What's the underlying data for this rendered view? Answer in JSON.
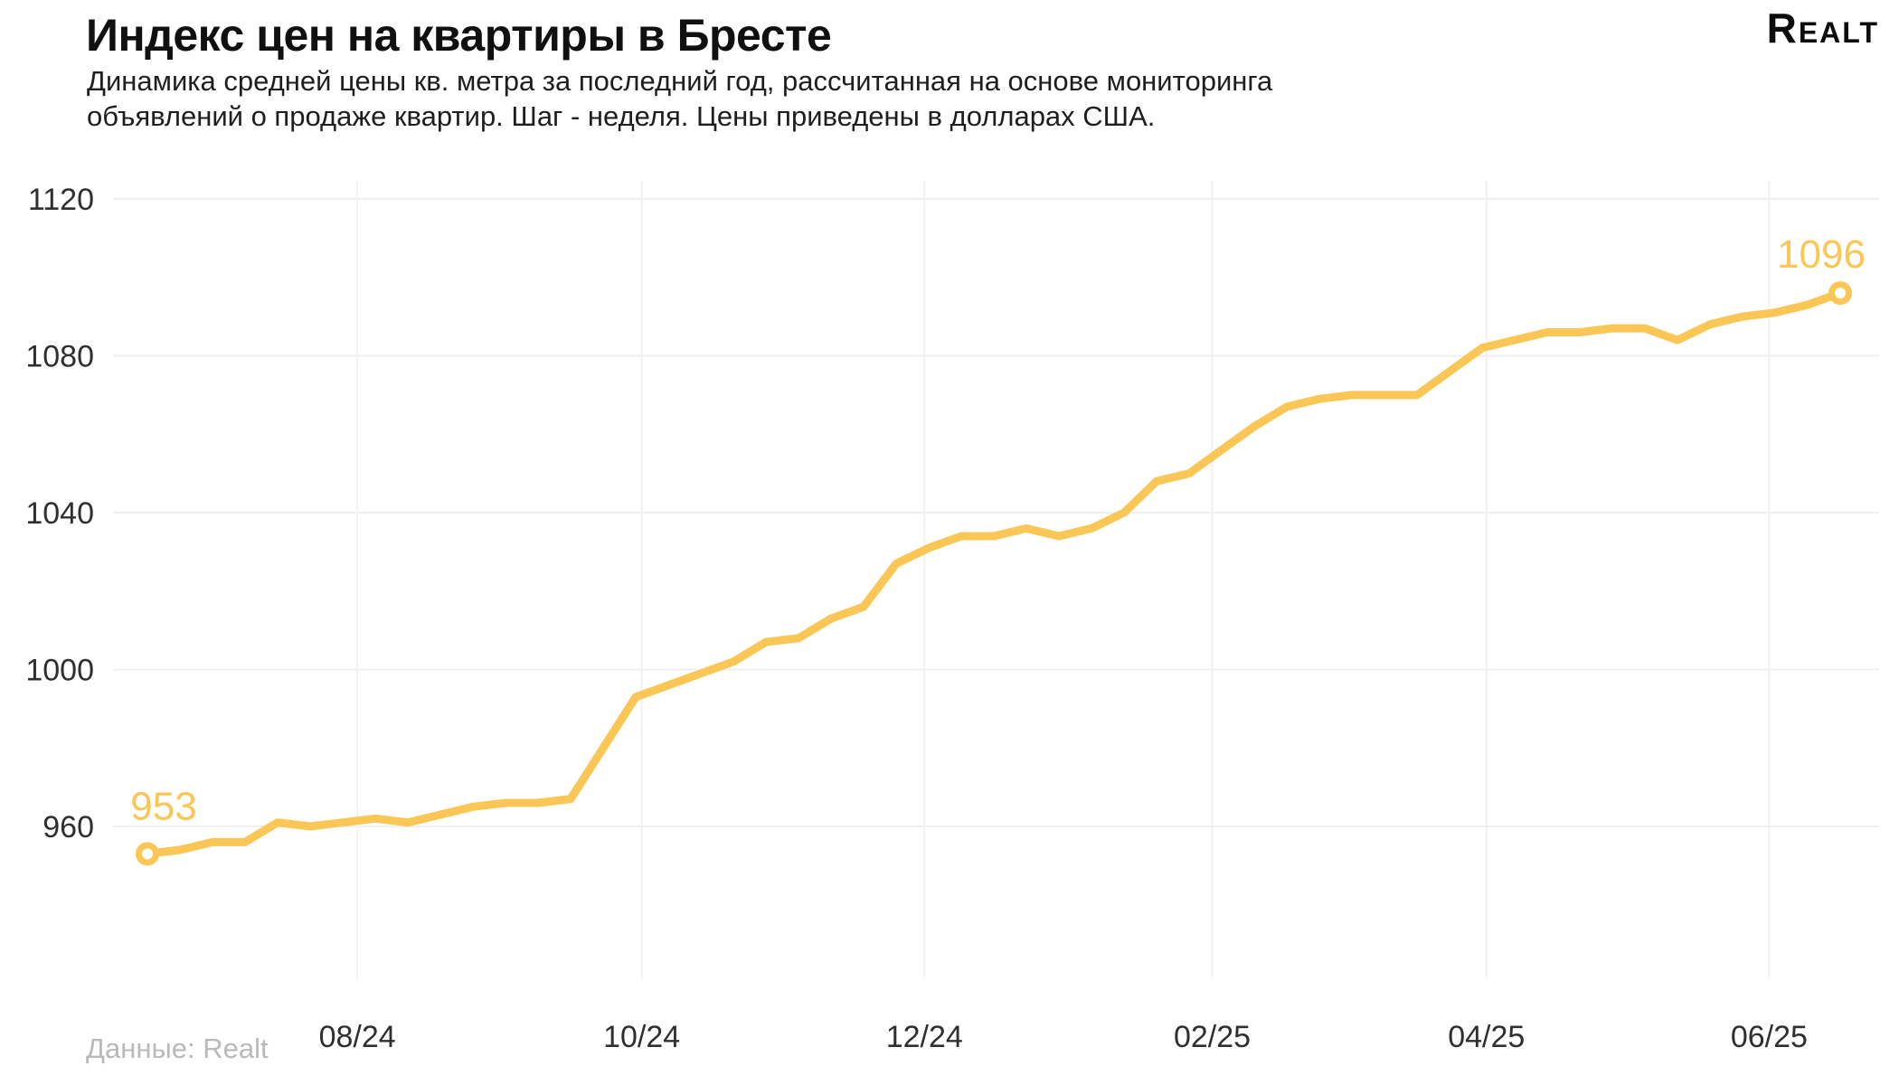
{
  "header": {
    "title": "Индекс цен на квартиры в Бресте",
    "subtitle_line1": "Динамика средней цены кв. метра за последний год, рассчитанная на основе мониторинга",
    "subtitle_line2": "объявлений о продаже квартир. Шаг - неделя. Цены приведены в долларах США.",
    "logo": "Realt"
  },
  "footer": {
    "source": "Данные: Realt"
  },
  "colors": {
    "line": "#FAC655",
    "grid_h": "#EFEFEF",
    "grid_v": "#F2F2F2",
    "tick_label": "#2f2f2f",
    "annotation": "#FAC655",
    "footer_text": "#b9b9b9"
  },
  "chart_data": {
    "type": "line",
    "title": "Индекс цен на квартиры в Бресте",
    "series_name": "Средняя цена кв. метра, USD",
    "step": "неделя",
    "values": [
      953,
      954,
      956,
      956,
      961,
      960,
      961,
      962,
      961,
      963,
      965,
      966,
      966,
      967,
      980,
      993,
      996,
      999,
      1002,
      1007,
      1008,
      1013,
      1016,
      1027,
      1031,
      1034,
      1034,
      1036,
      1034,
      1036,
      1040,
      1048,
      1050,
      1056,
      1062,
      1067,
      1069,
      1070,
      1070,
      1070,
      1076,
      1082,
      1084,
      1086,
      1086,
      1087,
      1087,
      1084,
      1088,
      1090,
      1091,
      1093,
      1096
    ],
    "y_ticks": [
      960,
      1000,
      1040,
      1080,
      1120
    ],
    "ylim": [
      921,
      1120
    ],
    "x_ticks": [
      {
        "label": "08/24",
        "pos": 0.124
      },
      {
        "label": "10/24",
        "pos": 0.292
      },
      {
        "label": "12/24",
        "pos": 0.459
      },
      {
        "label": "02/25",
        "pos": 0.629
      },
      {
        "label": "04/25",
        "pos": 0.791
      },
      {
        "label": "06/25",
        "pos": 0.958
      }
    ],
    "annotations": [
      {
        "text": "953",
        "index": 0
      },
      {
        "text": "1096",
        "index": 52
      }
    ],
    "grid": "horizontal-full, vertical-at-month-ticks",
    "legend": "none"
  }
}
